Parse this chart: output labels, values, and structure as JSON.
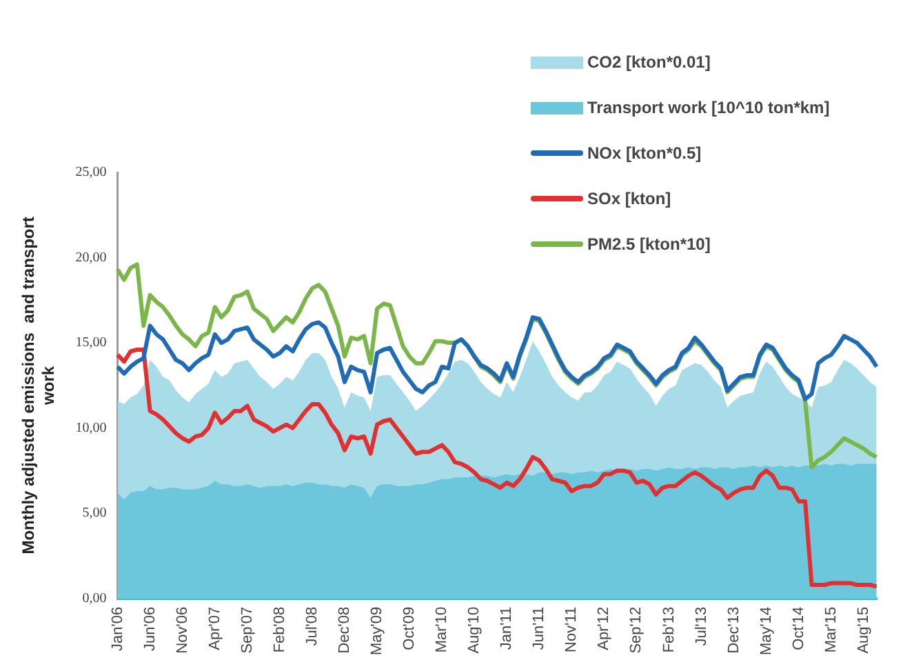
{
  "chart_data": {
    "type": "line",
    "ylabel": "Monthly adjusted emissions  and transport work",
    "categories": [
      "Jan'06",
      null,
      null,
      null,
      null,
      "Jun'06",
      null,
      null,
      null,
      null,
      "Nov'06",
      null,
      null,
      null,
      null,
      "Apr'07",
      null,
      null,
      null,
      null,
      "Sep'07",
      null,
      null,
      null,
      null,
      "Feb'08",
      null,
      null,
      null,
      null,
      "Jul'08",
      null,
      null,
      null,
      null,
      "Dec'08",
      null,
      null,
      null,
      null,
      "May'09",
      null,
      null,
      null,
      null,
      "Oct'09",
      null,
      null,
      null,
      null,
      "Mar'10",
      null,
      null,
      null,
      null,
      "Aug'10",
      null,
      null,
      null,
      null,
      "Jan'11",
      null,
      null,
      null,
      null,
      "Jun'11",
      null,
      null,
      null,
      null,
      "Nov'11",
      null,
      null,
      null,
      null,
      "Apr'12",
      null,
      null,
      null,
      null,
      "Sep'12",
      null,
      null,
      null,
      null,
      "Feb'13",
      null,
      null,
      null,
      null,
      "Jul'13",
      null,
      null,
      null,
      null,
      "Dec'13",
      null,
      null,
      null,
      null,
      "May'14",
      null,
      null,
      null,
      null,
      "Oct'14",
      null,
      null,
      null,
      null,
      "Mar'15",
      null,
      null,
      null,
      null,
      "Aug'15",
      null,
      null
    ],
    "series": [
      {
        "name": "CO2 [kton*0.01]",
        "type": "area",
        "color": "#a8dce8",
        "values": [
          11.6,
          11.4,
          11.8,
          12.0,
          12.5,
          14.0,
          13.6,
          13.0,
          12.8,
          12.2,
          11.8,
          11.5,
          12.0,
          12.3,
          12.6,
          13.4,
          13.0,
          13.2,
          13.8,
          13.9,
          14.0,
          13.5,
          13.0,
          12.7,
          12.3,
          12.6,
          13.0,
          12.8,
          13.3,
          14.0,
          14.4,
          14.4,
          14.0,
          13.0,
          12.3,
          11.2,
          12.1,
          11.9,
          11.8,
          11.0,
          13.0,
          13.1,
          13.1,
          12.6,
          12.1,
          11.6,
          11.0,
          11.3,
          11.7,
          12.1,
          12.6,
          13.2,
          13.9,
          14.0,
          13.8,
          13.3,
          12.7,
          12.3,
          12.0,
          11.8,
          12.7,
          12.1,
          13.0,
          14.0,
          15.1,
          14.5,
          13.8,
          13.0,
          12.5,
          12.1,
          11.8,
          11.6,
          12.1,
          12.1,
          12.5,
          13.1,
          13.3,
          13.9,
          13.7,
          13.5,
          12.9,
          12.4,
          12.0,
          11.3,
          11.9,
          12.3,
          12.5,
          13.4,
          13.6,
          13.8,
          13.7,
          13.3,
          12.8,
          12.4,
          11.2,
          11.6,
          11.9,
          12.0,
          12.1,
          13.2,
          13.9,
          13.6,
          13.0,
          12.4,
          12.0,
          11.8,
          11.6,
          11.2,
          12.4,
          12.5,
          12.7,
          13.4,
          14.0,
          13.8,
          13.5,
          13.1,
          12.7,
          12.4
        ]
      },
      {
        "name": "Transport work [10^10 ton*km]",
        "type": "area",
        "color": "#6cc7dc",
        "values": [
          6.2,
          5.8,
          6.2,
          6.3,
          6.3,
          6.6,
          6.4,
          6.4,
          6.5,
          6.5,
          6.4,
          6.4,
          6.4,
          6.5,
          6.6,
          6.9,
          6.7,
          6.7,
          6.6,
          6.6,
          6.7,
          6.6,
          6.5,
          6.6,
          6.6,
          6.6,
          6.7,
          6.6,
          6.7,
          6.8,
          6.8,
          6.7,
          6.7,
          6.6,
          6.6,
          6.5,
          6.7,
          6.6,
          6.5,
          5.9,
          6.6,
          6.7,
          6.7,
          6.6,
          6.6,
          6.6,
          6.7,
          6.7,
          6.8,
          6.9,
          7.0,
          7.0,
          7.1,
          7.1,
          7.1,
          7.2,
          7.2,
          7.2,
          7.1,
          7.2,
          7.3,
          7.2,
          7.3,
          7.3,
          7.2,
          7.4,
          7.4,
          7.3,
          7.4,
          7.4,
          7.3,
          7.4,
          7.4,
          7.5,
          7.4,
          7.5,
          7.6,
          7.5,
          7.5,
          7.6,
          7.5,
          7.6,
          7.6,
          7.5,
          7.6,
          7.7,
          7.6,
          7.6,
          7.7,
          7.6,
          7.7,
          7.7,
          7.6,
          7.7,
          7.7,
          7.6,
          7.7,
          7.7,
          7.8,
          7.7,
          7.8,
          7.7,
          7.8,
          7.7,
          7.8,
          7.7,
          7.8,
          7.8,
          7.8,
          7.9,
          7.8,
          7.9,
          7.9,
          7.8,
          7.9,
          7.9,
          7.9,
          7.9
        ]
      },
      {
        "name": "NOx [kton*0.5]",
        "color": "#1f6bb5",
        "values": [
          13.6,
          13.2,
          13.6,
          13.9,
          14.1,
          16.0,
          15.5,
          15.2,
          14.6,
          14.0,
          13.8,
          13.4,
          13.8,
          14.1,
          14.3,
          15.5,
          15.0,
          15.2,
          15.7,
          15.8,
          15.9,
          15.2,
          14.9,
          14.6,
          14.2,
          14.4,
          14.8,
          14.5,
          15.2,
          15.8,
          16.1,
          16.2,
          15.9,
          15.0,
          14.2,
          12.7,
          13.6,
          13.4,
          13.3,
          12.1,
          14.4,
          14.6,
          14.7,
          14.0,
          13.3,
          12.8,
          12.3,
          12.1,
          12.5,
          12.7,
          13.6,
          13.5,
          15.0,
          15.2,
          14.8,
          14.2,
          13.7,
          13.5,
          13.2,
          12.8,
          13.8,
          13.0,
          14.3,
          15.3,
          16.5,
          16.4,
          15.7,
          14.9,
          14.1,
          13.4,
          13.0,
          12.7,
          13.1,
          13.3,
          13.6,
          14.1,
          14.3,
          14.9,
          14.7,
          14.5,
          13.9,
          13.5,
          13.1,
          12.6,
          13.1,
          13.4,
          13.6,
          14.4,
          14.7,
          15.3,
          14.9,
          14.4,
          13.9,
          13.5,
          12.2,
          12.6,
          13.0,
          13.1,
          13.1,
          14.3,
          14.9,
          14.7,
          14.1,
          13.5,
          13.1,
          12.8,
          11.7,
          12.0,
          13.8,
          14.1,
          14.3,
          14.8,
          15.4,
          15.2,
          15.0,
          14.6,
          14.2,
          13.6
        ]
      },
      {
        "name": "SOx [kton]",
        "color": "#e03030",
        "values": [
          14.3,
          13.9,
          14.5,
          14.6,
          14.6,
          11.0,
          10.8,
          10.5,
          10.1,
          9.7,
          9.4,
          9.2,
          9.5,
          9.6,
          10.0,
          10.9,
          10.3,
          10.6,
          11.0,
          11.0,
          11.3,
          10.5,
          10.3,
          10.1,
          9.8,
          10.0,
          10.2,
          10.0,
          10.5,
          11.0,
          11.4,
          11.4,
          10.9,
          10.2,
          9.7,
          8.7,
          9.5,
          9.4,
          9.5,
          8.5,
          10.2,
          10.4,
          10.5,
          10.0,
          9.5,
          9.0,
          8.5,
          8.6,
          8.6,
          8.8,
          9.0,
          8.6,
          8.0,
          7.9,
          7.7,
          7.4,
          7.0,
          6.9,
          6.7,
          6.5,
          6.8,
          6.6,
          7.0,
          7.6,
          8.3,
          8.1,
          7.6,
          7.0,
          6.9,
          6.8,
          6.3,
          6.5,
          6.6,
          6.6,
          6.8,
          7.3,
          7.3,
          7.5,
          7.5,
          7.4,
          6.8,
          6.9,
          6.7,
          6.1,
          6.5,
          6.6,
          6.6,
          6.9,
          7.2,
          7.4,
          7.2,
          6.9,
          6.6,
          6.4,
          5.9,
          6.2,
          6.4,
          6.5,
          6.5,
          7.2,
          7.5,
          7.2,
          6.5,
          6.5,
          6.4,
          5.7,
          5.7,
          0.8,
          0.8,
          0.8,
          0.9,
          0.9,
          0.9,
          0.9,
          0.8,
          0.8,
          0.8,
          0.7
        ]
      },
      {
        "name": "PM2.5 [kton*10]",
        "color": "#7ab648",
        "values": [
          19.3,
          18.7,
          19.4,
          19.6,
          16.0,
          17.8,
          17.4,
          17.1,
          16.6,
          16.0,
          15.5,
          15.2,
          14.8,
          15.4,
          15.6,
          17.1,
          16.5,
          16.9,
          17.7,
          17.8,
          18.0,
          17.0,
          16.7,
          16.4,
          15.7,
          16.1,
          16.5,
          16.2,
          16.8,
          17.6,
          18.2,
          18.4,
          18.0,
          17.0,
          16.0,
          14.2,
          15.3,
          15.2,
          15.4,
          13.8,
          17.0,
          17.3,
          17.2,
          16.0,
          14.8,
          14.2,
          13.8,
          13.8,
          14.4,
          15.1,
          15.1,
          15.0,
          15.0,
          15.2,
          14.8,
          14.2,
          13.6,
          13.4,
          13.1,
          12.7,
          13.7,
          12.9,
          14.2,
          15.2,
          16.4,
          16.3,
          15.6,
          14.8,
          14.0,
          13.3,
          12.9,
          12.6,
          13.0,
          13.2,
          13.5,
          14.0,
          14.2,
          14.8,
          14.6,
          14.4,
          13.8,
          13.4,
          13.0,
          12.5,
          13.0,
          13.3,
          13.5,
          14.3,
          14.6,
          15.1,
          14.8,
          14.3,
          13.8,
          13.4,
          12.1,
          12.5,
          12.9,
          13.0,
          13.0,
          14.2,
          14.8,
          14.6,
          14.0,
          13.4,
          13.0,
          12.7,
          11.6,
          7.7,
          8.1,
          8.3,
          8.6,
          9.0,
          9.4,
          9.2,
          9.0,
          8.8,
          8.5,
          8.3
        ]
      }
    ],
    "ylim": [
      0,
      25
    ],
    "yticks": [
      {
        "value": 0,
        "label": "0,00"
      },
      {
        "value": 5,
        "label": "5,00"
      },
      {
        "value": 10,
        "label": "10,00"
      },
      {
        "value": 15,
        "label": "15,00"
      },
      {
        "value": 20,
        "label": "20,00"
      },
      {
        "value": 25,
        "label": "25,00"
      }
    ],
    "grid": false,
    "legend": "top right",
    "marker": "none",
    "line_style": "solid"
  }
}
